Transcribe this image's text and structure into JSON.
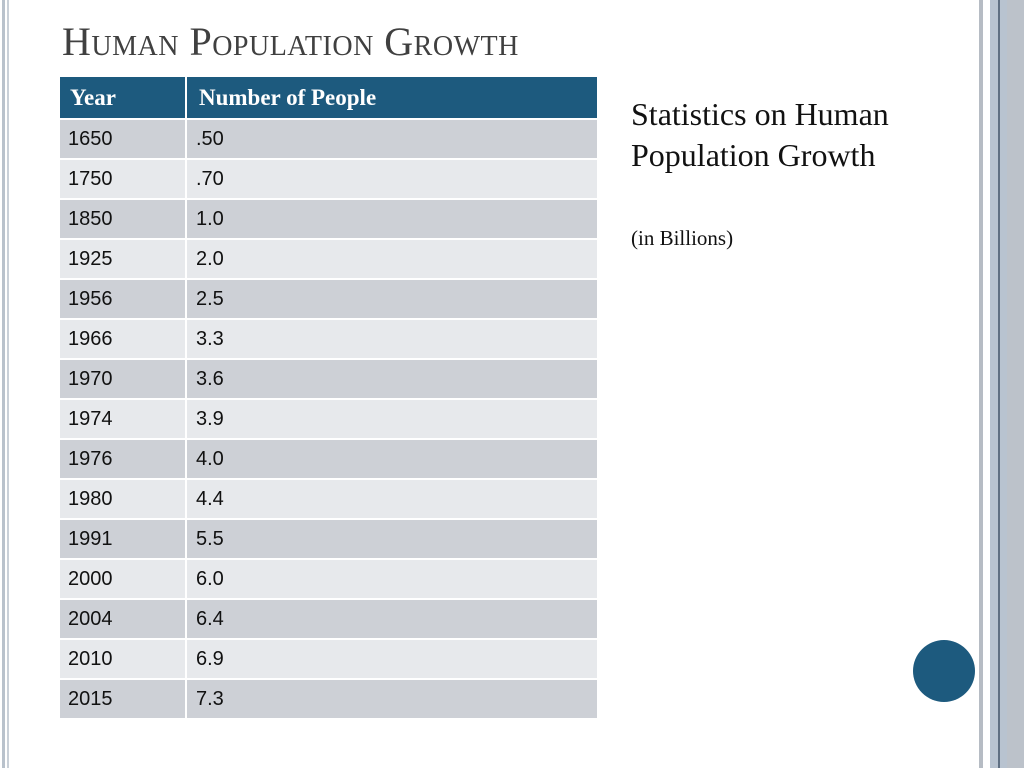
{
  "slide": {
    "title": "Human Population Growth",
    "side_heading": "Statistics on Human Population Growth",
    "side_note": "(in Billions)",
    "accent_color": "#1d5a7e"
  },
  "table": {
    "headers": [
      "Year",
      "Number of People"
    ],
    "rows": [
      [
        "1650",
        ".50"
      ],
      [
        "1750",
        ".70"
      ],
      [
        "1850",
        "1.0"
      ],
      [
        "1925",
        "2.0"
      ],
      [
        "1956",
        "2.5"
      ],
      [
        "1966",
        "3.3"
      ],
      [
        "1970",
        "3.6"
      ],
      [
        "1974",
        "3.9"
      ],
      [
        "1976",
        "4.0"
      ],
      [
        "1980",
        "4.4"
      ],
      [
        "1991",
        "5.5"
      ],
      [
        "2000",
        "6.0"
      ],
      [
        "2004",
        "6.4"
      ],
      [
        "2010",
        "6.9"
      ],
      [
        "2015",
        "7.3"
      ]
    ]
  }
}
